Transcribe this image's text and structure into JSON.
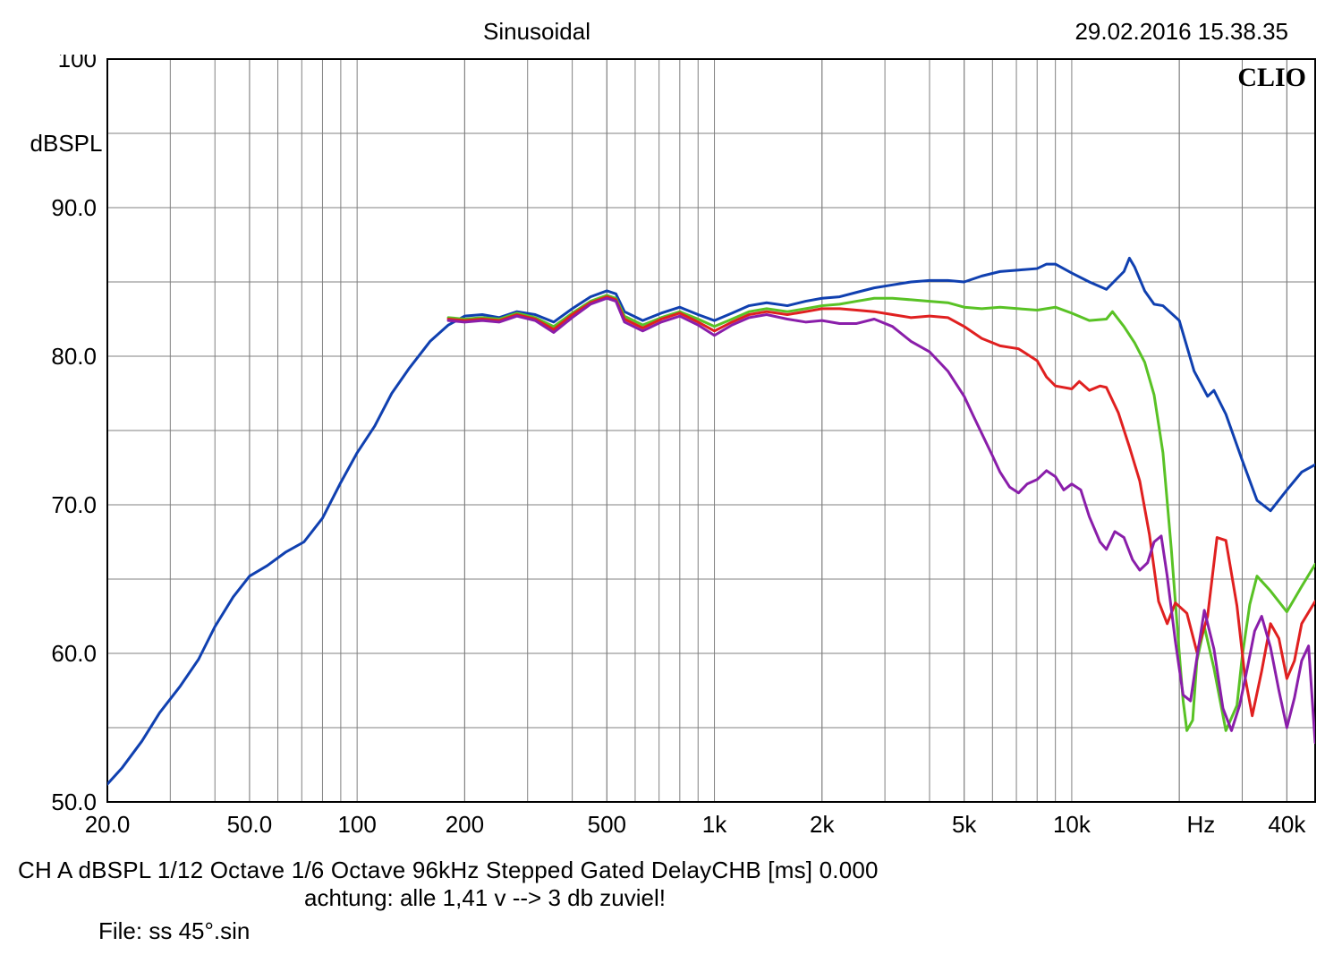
{
  "header": {
    "title": "Sinusoidal",
    "timestamp": "29.02.2016 15.38.35"
  },
  "watermark": "CLIO",
  "chart": {
    "type": "line",
    "background_color": "#ffffff",
    "border_color": "#000000",
    "border_width": 2,
    "grid_color": "#808080",
    "grid_width": 1,
    "line_width": 3,
    "y": {
      "label": "dBSPL",
      "label_fontsize": 26,
      "min": 50.0,
      "max": 100.0,
      "ticks": [
        50.0,
        60.0,
        70.0,
        80.0,
        90.0,
        100.0
      ],
      "tick_labels": [
        "50.0",
        "60.0",
        "70.0",
        "80.0",
        "90.0",
        "100"
      ],
      "minor_gridlines": [
        55,
        65,
        75,
        85,
        95
      ]
    },
    "x": {
      "label": "Hz",
      "label_fontsize": 26,
      "scale": "log",
      "min": 20,
      "max": 48000,
      "major_ticks": [
        20,
        50,
        100,
        200,
        500,
        1000,
        2000,
        5000,
        10000,
        40000
      ],
      "major_labels": [
        "20.0",
        "50.0",
        "100",
        "200",
        "500",
        "1k",
        "2k",
        "5k",
        "10k",
        "40k"
      ],
      "hz_label_at": 23000
    },
    "series": [
      {
        "name": "blue",
        "color": "#1040b0",
        "points": [
          [
            20,
            51.2
          ],
          [
            22,
            52.3
          ],
          [
            25,
            54.1
          ],
          [
            28,
            56.0
          ],
          [
            32,
            57.8
          ],
          [
            36,
            59.6
          ],
          [
            40,
            61.8
          ],
          [
            45,
            63.8
          ],
          [
            50,
            65.2
          ],
          [
            56,
            65.9
          ],
          [
            63,
            66.8
          ],
          [
            71,
            67.5
          ],
          [
            80,
            69.1
          ],
          [
            90,
            71.5
          ],
          [
            100,
            73.5
          ],
          [
            112,
            75.3
          ],
          [
            125,
            77.5
          ],
          [
            140,
            79.2
          ],
          [
            160,
            81.0
          ],
          [
            180,
            82.1
          ],
          [
            200,
            82.7
          ],
          [
            224,
            82.8
          ],
          [
            250,
            82.6
          ],
          [
            280,
            83.0
          ],
          [
            315,
            82.8
          ],
          [
            355,
            82.3
          ],
          [
            400,
            83.2
          ],
          [
            450,
            84.0
          ],
          [
            500,
            84.4
          ],
          [
            530,
            84.2
          ],
          [
            560,
            83.0
          ],
          [
            630,
            82.4
          ],
          [
            710,
            82.9
          ],
          [
            800,
            83.3
          ],
          [
            900,
            82.8
          ],
          [
            1000,
            82.4
          ],
          [
            1120,
            82.9
          ],
          [
            1250,
            83.4
          ],
          [
            1400,
            83.6
          ],
          [
            1600,
            83.4
          ],
          [
            1800,
            83.7
          ],
          [
            2000,
            83.9
          ],
          [
            2240,
            84.0
          ],
          [
            2500,
            84.3
          ],
          [
            2800,
            84.6
          ],
          [
            3150,
            84.8
          ],
          [
            3550,
            85.0
          ],
          [
            4000,
            85.1
          ],
          [
            4500,
            85.1
          ],
          [
            5000,
            85.0
          ],
          [
            5600,
            85.4
          ],
          [
            6300,
            85.7
          ],
          [
            7100,
            85.8
          ],
          [
            8000,
            85.9
          ],
          [
            8500,
            86.2
          ],
          [
            9000,
            86.2
          ],
          [
            10000,
            85.6
          ],
          [
            11200,
            85.0
          ],
          [
            12500,
            84.5
          ],
          [
            14000,
            85.7
          ],
          [
            14500,
            86.6
          ],
          [
            15000,
            86.0
          ],
          [
            16000,
            84.4
          ],
          [
            17000,
            83.5
          ],
          [
            18000,
            83.4
          ],
          [
            20000,
            82.4
          ],
          [
            22000,
            79.0
          ],
          [
            24000,
            77.3
          ],
          [
            25000,
            77.7
          ],
          [
            27000,
            76.1
          ],
          [
            30000,
            73.0
          ],
          [
            33000,
            70.3
          ],
          [
            36000,
            69.6
          ],
          [
            40000,
            71.0
          ],
          [
            44000,
            72.2
          ],
          [
            48000,
            72.7
          ]
        ]
      },
      {
        "name": "green",
        "color": "#59c225",
        "points": [
          [
            180,
            82.6
          ],
          [
            200,
            82.5
          ],
          [
            224,
            82.6
          ],
          [
            250,
            82.5
          ],
          [
            280,
            82.9
          ],
          [
            315,
            82.6
          ],
          [
            355,
            82.0
          ],
          [
            400,
            82.9
          ],
          [
            450,
            83.7
          ],
          [
            500,
            84.1
          ],
          [
            530,
            83.9
          ],
          [
            560,
            82.7
          ],
          [
            630,
            82.1
          ],
          [
            710,
            82.6
          ],
          [
            800,
            83.0
          ],
          [
            900,
            82.5
          ],
          [
            1000,
            82.0
          ],
          [
            1120,
            82.5
          ],
          [
            1250,
            83.0
          ],
          [
            1400,
            83.2
          ],
          [
            1600,
            83.0
          ],
          [
            1800,
            83.2
          ],
          [
            2000,
            83.4
          ],
          [
            2240,
            83.5
          ],
          [
            2500,
            83.7
          ],
          [
            2800,
            83.9
          ],
          [
            3150,
            83.9
          ],
          [
            3550,
            83.8
          ],
          [
            4000,
            83.7
          ],
          [
            4500,
            83.6
          ],
          [
            5000,
            83.3
          ],
          [
            5600,
            83.2
          ],
          [
            6300,
            83.3
          ],
          [
            7100,
            83.2
          ],
          [
            8000,
            83.1
          ],
          [
            9000,
            83.3
          ],
          [
            10000,
            82.9
          ],
          [
            11200,
            82.4
          ],
          [
            12500,
            82.5
          ],
          [
            13000,
            83.0
          ],
          [
            14000,
            82.0
          ],
          [
            15000,
            80.9
          ],
          [
            16000,
            79.6
          ],
          [
            17000,
            77.4
          ],
          [
            18000,
            73.5
          ],
          [
            19000,
            67.0
          ],
          [
            20000,
            60.0
          ],
          [
            20500,
            56.8
          ],
          [
            21000,
            54.8
          ],
          [
            21800,
            55.5
          ],
          [
            22400,
            59.5
          ],
          [
            23500,
            61.8
          ],
          [
            25000,
            59.0
          ],
          [
            27000,
            54.8
          ],
          [
            29000,
            56.5
          ],
          [
            30000,
            59.8
          ],
          [
            31500,
            63.3
          ],
          [
            33000,
            65.2
          ],
          [
            36000,
            64.2
          ],
          [
            40000,
            62.8
          ],
          [
            44000,
            64.5
          ],
          [
            48000,
            66.0
          ]
        ]
      },
      {
        "name": "red",
        "color": "#e02020",
        "points": [
          [
            180,
            82.5
          ],
          [
            200,
            82.4
          ],
          [
            224,
            82.5
          ],
          [
            250,
            82.4
          ],
          [
            280,
            82.8
          ],
          [
            315,
            82.5
          ],
          [
            355,
            81.8
          ],
          [
            400,
            82.8
          ],
          [
            450,
            83.6
          ],
          [
            500,
            84.0
          ],
          [
            530,
            83.8
          ],
          [
            560,
            82.5
          ],
          [
            630,
            81.9
          ],
          [
            710,
            82.5
          ],
          [
            800,
            82.9
          ],
          [
            900,
            82.3
          ],
          [
            1000,
            81.7
          ],
          [
            1120,
            82.3
          ],
          [
            1250,
            82.8
          ],
          [
            1400,
            83.0
          ],
          [
            1600,
            82.8
          ],
          [
            1800,
            83.0
          ],
          [
            2000,
            83.2
          ],
          [
            2240,
            83.2
          ],
          [
            2500,
            83.1
          ],
          [
            2800,
            83.0
          ],
          [
            3150,
            82.8
          ],
          [
            3550,
            82.6
          ],
          [
            4000,
            82.7
          ],
          [
            4500,
            82.6
          ],
          [
            5000,
            82.0
          ],
          [
            5600,
            81.2
          ],
          [
            6300,
            80.7
          ],
          [
            7100,
            80.5
          ],
          [
            8000,
            79.7
          ],
          [
            8500,
            78.6
          ],
          [
            9000,
            78.0
          ],
          [
            10000,
            77.8
          ],
          [
            10500,
            78.3
          ],
          [
            11200,
            77.7
          ],
          [
            12000,
            78.0
          ],
          [
            12500,
            77.9
          ],
          [
            13500,
            76.2
          ],
          [
            14500,
            73.9
          ],
          [
            15500,
            71.6
          ],
          [
            16500,
            68.0
          ],
          [
            17500,
            63.5
          ],
          [
            18500,
            62.0
          ],
          [
            19500,
            63.4
          ],
          [
            21000,
            62.7
          ],
          [
            22400,
            60.1
          ],
          [
            24000,
            62.5
          ],
          [
            25500,
            67.8
          ],
          [
            27000,
            67.6
          ],
          [
            29000,
            63.2
          ],
          [
            30500,
            58.5
          ],
          [
            32000,
            55.8
          ],
          [
            34000,
            58.8
          ],
          [
            36000,
            62.0
          ],
          [
            38000,
            61.0
          ],
          [
            40000,
            58.3
          ],
          [
            42000,
            59.5
          ],
          [
            44000,
            62.0
          ],
          [
            48000,
            63.5
          ]
        ]
      },
      {
        "name": "purple",
        "color": "#8a1eaa",
        "points": [
          [
            180,
            82.4
          ],
          [
            200,
            82.3
          ],
          [
            224,
            82.4
          ],
          [
            250,
            82.3
          ],
          [
            280,
            82.7
          ],
          [
            315,
            82.4
          ],
          [
            355,
            81.6
          ],
          [
            400,
            82.6
          ],
          [
            450,
            83.5
          ],
          [
            500,
            83.9
          ],
          [
            530,
            83.7
          ],
          [
            560,
            82.3
          ],
          [
            630,
            81.7
          ],
          [
            710,
            82.3
          ],
          [
            800,
            82.7
          ],
          [
            900,
            82.1
          ],
          [
            1000,
            81.4
          ],
          [
            1120,
            82.1
          ],
          [
            1250,
            82.6
          ],
          [
            1400,
            82.8
          ],
          [
            1600,
            82.5
          ],
          [
            1800,
            82.3
          ],
          [
            2000,
            82.4
          ],
          [
            2240,
            82.2
          ],
          [
            2500,
            82.2
          ],
          [
            2800,
            82.5
          ],
          [
            3150,
            82.0
          ],
          [
            3550,
            81.0
          ],
          [
            4000,
            80.3
          ],
          [
            4500,
            79.0
          ],
          [
            5000,
            77.3
          ],
          [
            5300,
            76.0
          ],
          [
            5600,
            74.8
          ],
          [
            6000,
            73.3
          ],
          [
            6300,
            72.2
          ],
          [
            6700,
            71.2
          ],
          [
            7100,
            70.8
          ],
          [
            7500,
            71.4
          ],
          [
            8000,
            71.7
          ],
          [
            8500,
            72.3
          ],
          [
            9000,
            71.9
          ],
          [
            9500,
            71.0
          ],
          [
            10000,
            71.4
          ],
          [
            10600,
            71.0
          ],
          [
            11200,
            69.2
          ],
          [
            12000,
            67.5
          ],
          [
            12500,
            67.0
          ],
          [
            13200,
            68.2
          ],
          [
            14000,
            67.8
          ],
          [
            14800,
            66.3
          ],
          [
            15500,
            65.6
          ],
          [
            16300,
            66.1
          ],
          [
            17000,
            67.5
          ],
          [
            17800,
            67.9
          ],
          [
            18500,
            65.2
          ],
          [
            19500,
            60.8
          ],
          [
            20500,
            57.2
          ],
          [
            21500,
            56.8
          ],
          [
            22500,
            60.0
          ],
          [
            23500,
            62.9
          ],
          [
            25000,
            60.3
          ],
          [
            26500,
            56.3
          ],
          [
            28000,
            54.8
          ],
          [
            29500,
            56.5
          ],
          [
            31000,
            59.0
          ],
          [
            32500,
            61.5
          ],
          [
            34000,
            62.5
          ],
          [
            36000,
            60.4
          ],
          [
            38000,
            57.5
          ],
          [
            40000,
            55.0
          ],
          [
            42000,
            57.0
          ],
          [
            44000,
            59.5
          ],
          [
            46000,
            60.5
          ],
          [
            48000,
            54.0
          ]
        ]
      }
    ]
  },
  "footer": {
    "line1_parts": [
      "CH A",
      "dBSPL",
      "1/12 Octave",
      "1/6 Octave",
      "96kHz",
      "Stepped",
      "Gated",
      "DelayCHB [ms] 0.000"
    ],
    "line2": "achtung: alle 1,41 v --> 3 db zuviel!",
    "line3": "File: ss 45°.sin"
  }
}
